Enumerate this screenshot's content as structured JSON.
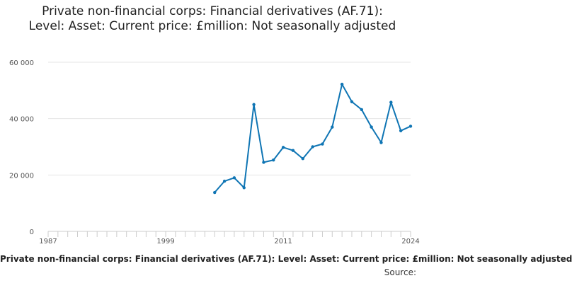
{
  "chart_data": {
    "type": "line",
    "title": "Private non-financial corps: Financial derivatives (AF.71): Level: Asset: Current price: £million: Not seasonally adjusted",
    "series": [
      {
        "name": "Private non-financial corps: Financial derivatives (AF.71): Level: Asset: Current price: £million: Not seasonally adjusted",
        "color": "#0f75b4",
        "x": [
          2004,
          2005,
          2006,
          2007,
          2008,
          2009,
          2010,
          2011,
          2012,
          2013,
          2014,
          2015,
          2016,
          2017,
          2018,
          2019,
          2020,
          2021,
          2022,
          2023,
          2024
        ],
        "values": [
          13800,
          17800,
          19000,
          15500,
          45000,
          24500,
          25300,
          29800,
          28700,
          25800,
          30000,
          31000,
          37000,
          52200,
          46000,
          43200,
          37000,
          31500,
          45800,
          35700,
          37300
        ]
      }
    ],
    "x_ticks": [
      "1987",
      "1999",
      "2011",
      "2024"
    ],
    "y_ticks": [
      "0",
      "20 000",
      "40 000",
      "60 000"
    ],
    "xlim": [
      1987,
      2024
    ],
    "ylim": [
      0,
      60000
    ],
    "grid": true,
    "xlabel": "",
    "ylabel": ""
  },
  "legend": {
    "label": "Private non-financial corps: Financial derivatives (AF.71): Level: Asset: Current price: £million: Not seasonally adjusted"
  },
  "source": {
    "label": "Source:"
  }
}
